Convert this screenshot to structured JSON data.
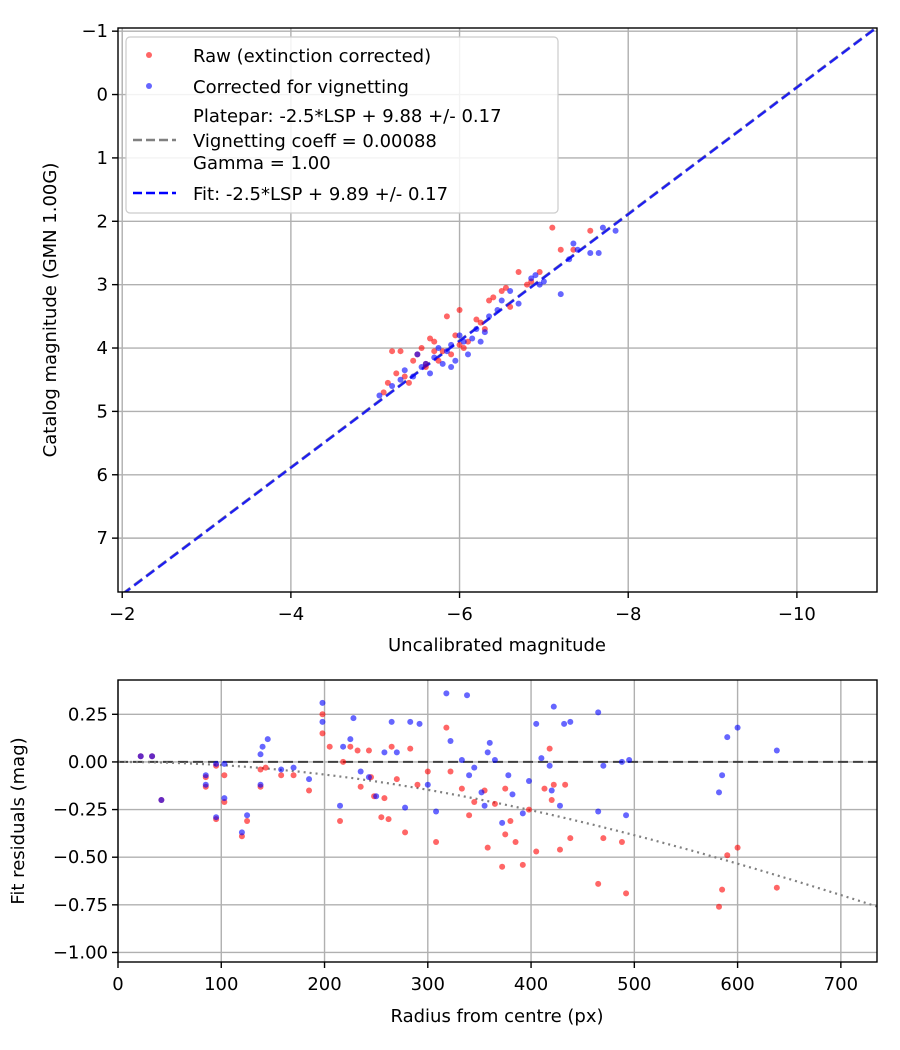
{
  "chart_data": [
    {
      "type": "scatter",
      "xlabel": "Uncalibrated magnitude",
      "ylabel": "Catalog magnitude (GMN 1.00G)",
      "xlim": [
        -1.95,
        -10.95
      ],
      "ylim": [
        7.85,
        -1.05
      ],
      "xticks": [
        -2,
        -4,
        -6,
        -8,
        -10
      ],
      "xtick_labels": [
        "−2",
        "−4",
        "−6",
        "−8",
        "−10"
      ],
      "yticks": [
        -1,
        0,
        1,
        2,
        3,
        4,
        5,
        6,
        7
      ],
      "ytick_labels": [
        "−1",
        "0",
        "1",
        "2",
        "3",
        "4",
        "5",
        "6",
        "7"
      ],
      "grid": true,
      "legend_position": "top-left",
      "legend": [
        {
          "kind": "marker",
          "color": "#ff0000",
          "label": "Raw (extinction corrected)"
        },
        {
          "kind": "marker",
          "color": "#0000ff",
          "label": "Corrected for vignetting"
        },
        {
          "kind": "line",
          "color": "#808080",
          "label_lines": [
            "Platepar: -2.5*LSP + 9.88 +/- 0.17",
            "Vignetting coeff = 0.00088",
            "Gamma = 1.00"
          ]
        },
        {
          "kind": "line",
          "color": "#0000ff",
          "label": "Fit: -2.5*LSP + 9.89 +/- 0.17"
        }
      ],
      "lines": [
        {
          "name": "Platepar",
          "color": "#808080",
          "dashed": true,
          "x": [
            -2,
            -11
          ],
          "y": [
            7.88,
            -1.12
          ]
        },
        {
          "name": "Fit",
          "color": "#0000ff",
          "dashed": true,
          "x": [
            -2,
            -11
          ],
          "y": [
            7.89,
            -1.11
          ]
        }
      ],
      "series": [
        {
          "name": "Raw (extinction corrected)",
          "color": "#ff0000",
          "points": [
            [
              -5.1,
              4.7
            ],
            [
              -5.15,
              4.55
            ],
            [
              -5.2,
              4.05
            ],
            [
              -5.25,
              4.4
            ],
            [
              -5.3,
              4.05
            ],
            [
              -5.35,
              4.45
            ],
            [
              -5.4,
              4.55
            ],
            [
              -5.45,
              4.2
            ],
            [
              -5.5,
              4.1
            ],
            [
              -5.55,
              4.0
            ],
            [
              -5.6,
              4.3
            ],
            [
              -5.65,
              3.85
            ],
            [
              -5.7,
              3.9
            ],
            [
              -5.75,
              4.2
            ],
            [
              -5.8,
              4.05
            ],
            [
              -5.85,
              3.5
            ],
            [
              -5.9,
              4.1
            ],
            [
              -5.95,
              3.8
            ],
            [
              -6.0,
              3.4
            ],
            [
              -6.05,
              4.0
            ],
            [
              -6.1,
              3.9
            ],
            [
              -6.2,
              3.55
            ],
            [
              -6.3,
              3.7
            ],
            [
              -6.35,
              3.25
            ],
            [
              -6.4,
              3.2
            ],
            [
              -6.5,
              3.1
            ],
            [
              -6.6,
              3.35
            ],
            [
              -6.7,
              2.8
            ],
            [
              -6.8,
              3.0
            ],
            [
              -6.85,
              2.95
            ],
            [
              -6.95,
              2.8
            ],
            [
              -7.1,
              2.1
            ],
            [
              -7.2,
              2.45
            ],
            [
              -7.35,
              2.45
            ],
            [
              -7.55,
              2.15
            ],
            [
              -5.6,
              4.25
            ],
            [
              -5.7,
              4.05
            ],
            [
              -6.0,
              3.95
            ],
            [
              -6.25,
              3.6
            ],
            [
              -6.55,
              3.05
            ]
          ]
        },
        {
          "name": "Corrected for vignetting",
          "color": "#0000ff",
          "points": [
            [
              -5.05,
              4.75
            ],
            [
              -5.2,
              4.6
            ],
            [
              -5.3,
              4.5
            ],
            [
              -5.35,
              4.35
            ],
            [
              -5.45,
              4.45
            ],
            [
              -5.5,
              4.1
            ],
            [
              -5.55,
              4.3
            ],
            [
              -5.6,
              4.25
            ],
            [
              -5.65,
              4.4
            ],
            [
              -5.7,
              4.15
            ],
            [
              -5.75,
              4.0
            ],
            [
              -5.8,
              4.25
            ],
            [
              -5.85,
              4.05
            ],
            [
              -5.9,
              3.95
            ],
            [
              -5.95,
              4.2
            ],
            [
              -6.0,
              3.8
            ],
            [
              -6.05,
              3.9
            ],
            [
              -6.1,
              4.1
            ],
            [
              -6.15,
              3.85
            ],
            [
              -6.2,
              3.7
            ],
            [
              -6.3,
              3.75
            ],
            [
              -6.35,
              3.5
            ],
            [
              -6.45,
              3.4
            ],
            [
              -6.5,
              3.25
            ],
            [
              -6.6,
              3.1
            ],
            [
              -6.7,
              3.3
            ],
            [
              -6.85,
              2.9
            ],
            [
              -6.95,
              3.0
            ],
            [
              -7.0,
              2.95
            ],
            [
              -7.2,
              3.15
            ],
            [
              -7.3,
              2.6
            ],
            [
              -7.4,
              2.45
            ],
            [
              -7.55,
              2.5
            ],
            [
              -7.65,
              2.5
            ],
            [
              -7.7,
              2.1
            ],
            [
              -7.85,
              2.15
            ],
            [
              -7.35,
              2.35
            ],
            [
              -6.9,
              2.85
            ],
            [
              -5.9,
              4.3
            ],
            [
              -6.25,
              3.9
            ]
          ]
        }
      ]
    },
    {
      "type": "scatter",
      "xlabel": "Radius from centre (px)",
      "ylabel": "Fit residuals (mag)",
      "xlim": [
        0,
        735
      ],
      "ylim": [
        -1.05,
        0.43
      ],
      "xticks": [
        0,
        100,
        200,
        300,
        400,
        500,
        600,
        700
      ],
      "xtick_labels": [
        "0",
        "100",
        "200",
        "300",
        "400",
        "500",
        "600",
        "700"
      ],
      "yticks": [
        0.25,
        0,
        -0.25,
        -0.5,
        -0.75,
        -1.0
      ],
      "ytick_labels": [
        "0.25",
        "0.00",
        "−0.25",
        "−0.50",
        "−0.75",
        "−1.00"
      ],
      "grid": true,
      "zero_line": {
        "y": 0,
        "color": "#404040",
        "dashed": true
      },
      "vignetting_curve": {
        "coeff": 0.00088,
        "color": "#808080",
        "dotted": true
      },
      "series": [
        {
          "name": "Raw (extinction corrected)",
          "color": "#ff0000",
          "points": [
            [
              22,
              0.03
            ],
            [
              33,
              0.03
            ],
            [
              42,
              -0.2
            ],
            [
              85,
              -0.08
            ],
            [
              85,
              -0.13
            ],
            [
              95,
              -0.3
            ],
            [
              95,
              -0.02
            ],
            [
              103,
              -0.07
            ],
            [
              103,
              -0.21
            ],
            [
              120,
              -0.39
            ],
            [
              125,
              -0.31
            ],
            [
              138,
              -0.04
            ],
            [
              138,
              -0.13
            ],
            [
              143,
              -0.03
            ],
            [
              158,
              -0.07
            ],
            [
              170,
              -0.07
            ],
            [
              185,
              -0.15
            ],
            [
              198,
              0.25
            ],
            [
              198,
              0.15
            ],
            [
              205,
              0.08
            ],
            [
              215,
              -0.31
            ],
            [
              218,
              0.0
            ],
            [
              225,
              0.08
            ],
            [
              232,
              0.06
            ],
            [
              235,
              -0.13
            ],
            [
              243,
              0.06
            ],
            [
              245,
              -0.08
            ],
            [
              248,
              -0.18
            ],
            [
              255,
              -0.29
            ],
            [
              258,
              -0.19
            ],
            [
              262,
              -0.3
            ],
            [
              265,
              0.08
            ],
            [
              270,
              -0.09
            ],
            [
              278,
              -0.37
            ],
            [
              283,
              0.07
            ],
            [
              290,
              -0.12
            ],
            [
              308,
              -0.42
            ],
            [
              318,
              0.18
            ],
            [
              322,
              -0.05
            ],
            [
              333,
              -0.14
            ],
            [
              340,
              -0.28
            ],
            [
              345,
              -0.21
            ],
            [
              355,
              -0.15
            ],
            [
              358,
              -0.45
            ],
            [
              365,
              -0.22
            ],
            [
              372,
              -0.55
            ],
            [
              375,
              -0.38
            ],
            [
              380,
              -0.31
            ],
            [
              385,
              -0.42
            ],
            [
              392,
              -0.54
            ],
            [
              398,
              -0.25
            ],
            [
              405,
              -0.47
            ],
            [
              413,
              -0.14
            ],
            [
              418,
              0.07
            ],
            [
              422,
              -0.12
            ],
            [
              428,
              -0.46
            ],
            [
              433,
              -0.12
            ],
            [
              438,
              -0.4
            ],
            [
              465,
              -0.64
            ],
            [
              470,
              -0.4
            ],
            [
              488,
              -0.42
            ],
            [
              492,
              -0.69
            ],
            [
              582,
              -0.76
            ],
            [
              585,
              -0.67
            ],
            [
              590,
              -0.49
            ],
            [
              600,
              -0.45
            ],
            [
              638,
              -0.66
            ],
            [
              375,
              -0.14
            ],
            [
              300,
              -0.05
            ],
            [
              420,
              -0.2
            ]
          ]
        },
        {
          "name": "Corrected for vignetting",
          "color": "#0000ff",
          "points": [
            [
              22,
              0.03
            ],
            [
              33,
              0.03
            ],
            [
              42,
              -0.2
            ],
            [
              85,
              -0.07
            ],
            [
              85,
              -0.12
            ],
            [
              95,
              -0.29
            ],
            [
              95,
              -0.01
            ],
            [
              103,
              -0.01
            ],
            [
              103,
              -0.19
            ],
            [
              120,
              -0.37
            ],
            [
              125,
              -0.28
            ],
            [
              138,
              0.04
            ],
            [
              138,
              -0.12
            ],
            [
              140,
              0.08
            ],
            [
              145,
              0.12
            ],
            [
              158,
              -0.04
            ],
            [
              170,
              -0.03
            ],
            [
              185,
              -0.09
            ],
            [
              198,
              0.31
            ],
            [
              198,
              0.21
            ],
            [
              215,
              -0.23
            ],
            [
              218,
              0.08
            ],
            [
              225,
              0.12
            ],
            [
              228,
              0.23
            ],
            [
              235,
              -0.05
            ],
            [
              243,
              -0.08
            ],
            [
              258,
              0.05
            ],
            [
              265,
              0.21
            ],
            [
              270,
              0.05
            ],
            [
              278,
              -0.24
            ],
            [
              283,
              0.21
            ],
            [
              292,
              0.2
            ],
            [
              308,
              -0.26
            ],
            [
              318,
              0.36
            ],
            [
              322,
              0.11
            ],
            [
              333,
              0.01
            ],
            [
              338,
              0.35
            ],
            [
              340,
              -0.07
            ],
            [
              345,
              -0.03
            ],
            [
              352,
              -0.16
            ],
            [
              355,
              -0.23
            ],
            [
              358,
              0.05
            ],
            [
              360,
              0.1
            ],
            [
              365,
              0.01
            ],
            [
              372,
              -0.32
            ],
            [
              378,
              -0.07
            ],
            [
              382,
              -0.17
            ],
            [
              392,
              -0.27
            ],
            [
              398,
              -0.1
            ],
            [
              405,
              0.2
            ],
            [
              410,
              0.02
            ],
            [
              418,
              -0.02
            ],
            [
              422,
              0.29
            ],
            [
              428,
              -0.23
            ],
            [
              432,
              0.2
            ],
            [
              438,
              0.21
            ],
            [
              465,
              0.26
            ],
            [
              465,
              -0.26
            ],
            [
              470,
              -0.02
            ],
            [
              488,
              0.0
            ],
            [
              492,
              -0.28
            ],
            [
              495,
              0.01
            ],
            [
              582,
              -0.16
            ],
            [
              585,
              -0.07
            ],
            [
              590,
              0.13
            ],
            [
              600,
              0.18
            ],
            [
              638,
              0.06
            ],
            [
              420,
              -0.15
            ],
            [
              300,
              -0.12
            ],
            [
              250,
              -0.18
            ]
          ]
        }
      ]
    }
  ]
}
